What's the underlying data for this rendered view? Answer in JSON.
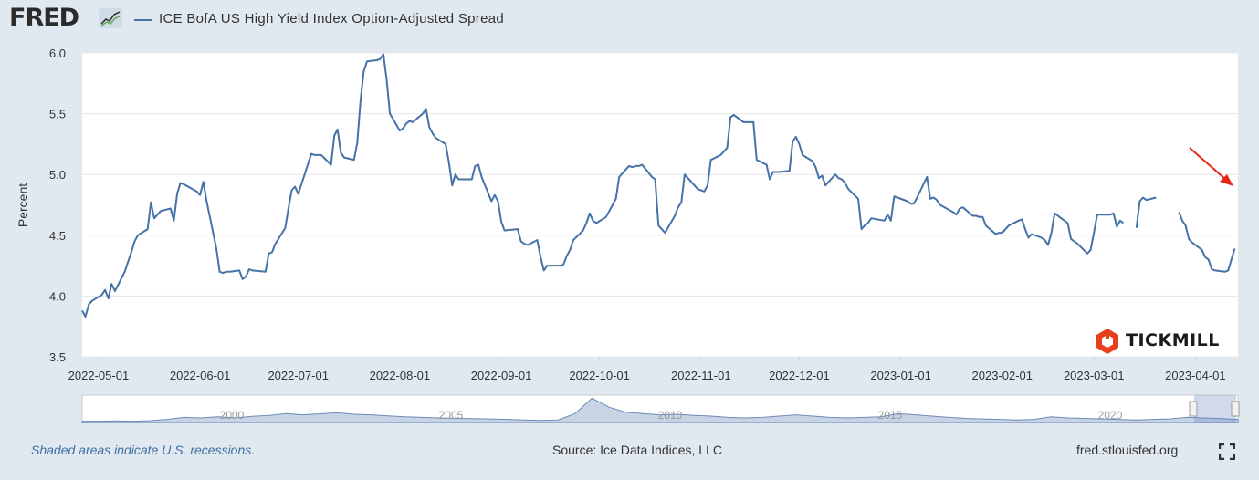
{
  "header": {
    "logo_text": "FRED",
    "logo_icon": "fred-chart-icon",
    "series_legend": "ICE BofA US High Yield Index Option-Adjusted Spread"
  },
  "footer": {
    "recession_note": "Shaded areas indicate U.S. recessions.",
    "source": "Source: Ice Data Indices, LLC",
    "site": "fred.stlouisfed.org",
    "fullscreen_icon": "fullscreen-icon"
  },
  "watermark": {
    "text": "TICKMILL",
    "color": "#e8401c"
  },
  "colors": {
    "line": "#4572a7",
    "navigator_fill": "#9ab0cc",
    "arrow": "#e52914",
    "background": "#e1e9f0",
    "plot_bg": "#ffffff"
  },
  "chart_data": {
    "type": "line",
    "title": "",
    "ylabel": "Percent",
    "xlabel": "",
    "ylim": [
      3.5,
      6.0
    ],
    "yticks": [
      3.5,
      4.0,
      4.5,
      5.0,
      5.5,
      6.0
    ],
    "ytick_labels": [
      "3.5",
      "4.0",
      "4.5",
      "5.0",
      "5.5",
      "6.0"
    ],
    "xlim": [
      "2022-04-26",
      "2023-04-14"
    ],
    "xticks": [
      "2022-05-01",
      "2022-06-01",
      "2022-07-01",
      "2022-08-01",
      "2022-09-01",
      "2022-10-01",
      "2022-11-01",
      "2022-12-01",
      "2023-01-01",
      "2023-02-01",
      "2023-03-01",
      "2023-04-01"
    ],
    "grid": true,
    "legend_position": "top-left",
    "series": [
      {
        "name": "ICE BofA US High Yield Index Option-Adjusted Spread",
        "points": [
          [
            "2022-04-26",
            3.88
          ],
          [
            "2022-04-27",
            3.83
          ],
          [
            "2022-04-28",
            3.93
          ],
          [
            "2022-04-29",
            3.96
          ],
          [
            "2022-05-02",
            4.01
          ],
          [
            "2022-05-03",
            4.05
          ],
          [
            "2022-05-04",
            3.98
          ],
          [
            "2022-05-05",
            4.1
          ],
          [
            "2022-05-06",
            4.04
          ],
          [
            "2022-05-09",
            4.2
          ],
          [
            "2022-05-10",
            4.28
          ],
          [
            "2022-05-11",
            4.36
          ],
          [
            "2022-05-12",
            4.45
          ],
          [
            "2022-05-13",
            4.5
          ],
          [
            "2022-05-16",
            4.55
          ],
          [
            "2022-05-17",
            4.77
          ],
          [
            "2022-05-18",
            4.64
          ],
          [
            "2022-05-19",
            4.67
          ],
          [
            "2022-05-20",
            4.7
          ],
          [
            "2022-05-23",
            4.72
          ],
          [
            "2022-05-24",
            4.62
          ],
          [
            "2022-05-25",
            4.84
          ],
          [
            "2022-05-26",
            4.93
          ],
          [
            "2022-05-27",
            4.92
          ],
          [
            "2022-05-31",
            4.86
          ],
          [
            "2022-06-01",
            4.83
          ],
          [
            "2022-06-02",
            4.94
          ],
          [
            "2022-06-03",
            4.78
          ],
          [
            "2022-06-06",
            4.39
          ],
          [
            "2022-06-07",
            4.2
          ],
          [
            "2022-06-08",
            4.19
          ],
          [
            "2022-06-09",
            4.2
          ],
          [
            "2022-06-10",
            4.2
          ],
          [
            "2022-06-13",
            4.21
          ],
          [
            "2022-06-14",
            4.14
          ],
          [
            "2022-06-15",
            4.16
          ],
          [
            "2022-06-16",
            4.22
          ],
          [
            "2022-06-17",
            4.21
          ],
          [
            "2022-06-21",
            4.2
          ],
          [
            "2022-06-22",
            4.35
          ],
          [
            "2022-06-23",
            4.36
          ],
          [
            "2022-06-24",
            4.43
          ],
          [
            "2022-06-27",
            4.56
          ],
          [
            "2022-06-28",
            4.72
          ],
          [
            "2022-06-29",
            4.87
          ],
          [
            "2022-06-30",
            4.9
          ],
          [
            "2022-07-01",
            4.84
          ],
          [
            "2022-07-05",
            5.17
          ],
          [
            "2022-07-06",
            5.16
          ],
          [
            "2022-07-07",
            5.16
          ],
          [
            "2022-07-08",
            5.16
          ],
          [
            "2022-07-11",
            5.08
          ],
          [
            "2022-07-12",
            5.32
          ],
          [
            "2022-07-13",
            5.37
          ],
          [
            "2022-07-14",
            5.18
          ],
          [
            "2022-07-15",
            5.14
          ],
          [
            "2022-07-18",
            5.12
          ],
          [
            "2022-07-19",
            5.26
          ],
          [
            "2022-07-20",
            5.6
          ],
          [
            "2022-07-21",
            5.85
          ],
          [
            "2022-07-22",
            5.93
          ],
          [
            "2022-07-25",
            5.94
          ],
          [
            "2022-07-26",
            5.95
          ],
          [
            "2022-07-27",
            5.99
          ],
          [
            "2022-07-28",
            5.78
          ],
          [
            "2022-07-29",
            5.5
          ],
          [
            "2022-08-01",
            5.36
          ],
          [
            "2022-08-02",
            5.38
          ],
          [
            "2022-08-03",
            5.42
          ],
          [
            "2022-08-04",
            5.44
          ],
          [
            "2022-08-05",
            5.43
          ],
          [
            "2022-08-08",
            5.5
          ],
          [
            "2022-08-09",
            5.54
          ],
          [
            "2022-08-10",
            5.39
          ],
          [
            "2022-08-11",
            5.34
          ],
          [
            "2022-08-12",
            5.3
          ],
          [
            "2022-08-15",
            5.25
          ],
          [
            "2022-08-16",
            5.1
          ],
          [
            "2022-08-17",
            4.91
          ],
          [
            "2022-08-18",
            5.0
          ],
          [
            "2022-08-19",
            4.96
          ],
          [
            "2022-08-22",
            4.96
          ],
          [
            "2022-08-23",
            4.96
          ],
          [
            "2022-08-24",
            5.07
          ],
          [
            "2022-08-25",
            5.08
          ],
          [
            "2022-08-26",
            4.98
          ],
          [
            "2022-08-29",
            4.78
          ],
          [
            "2022-08-30",
            4.83
          ],
          [
            "2022-08-31",
            4.78
          ],
          [
            "2022-09-01",
            4.61
          ],
          [
            "2022-09-02",
            4.54
          ],
          [
            "2022-09-06",
            4.55
          ],
          [
            "2022-09-07",
            4.45
          ],
          [
            "2022-09-08",
            4.43
          ],
          [
            "2022-09-09",
            4.42
          ],
          [
            "2022-09-12",
            4.46
          ],
          [
            "2022-09-13",
            4.32
          ],
          [
            "2022-09-14",
            4.21
          ],
          [
            "2022-09-15",
            4.25
          ],
          [
            "2022-09-16",
            4.25
          ],
          [
            "2022-09-19",
            4.25
          ],
          [
            "2022-09-20",
            4.26
          ],
          [
            "2022-09-21",
            4.33
          ],
          [
            "2022-09-22",
            4.38
          ],
          [
            "2022-09-23",
            4.46
          ],
          [
            "2022-09-26",
            4.54
          ],
          [
            "2022-09-27",
            4.6
          ],
          [
            "2022-09-28",
            4.68
          ],
          [
            "2022-09-29",
            4.62
          ],
          [
            "2022-09-30",
            4.6
          ],
          [
            "2022-10-03",
            4.65
          ],
          [
            "2022-10-04",
            4.7
          ],
          [
            "2022-10-05",
            4.75
          ],
          [
            "2022-10-06",
            4.8
          ],
          [
            "2022-10-07",
            4.98
          ],
          [
            "2022-10-10",
            5.07
          ],
          [
            "2022-10-11",
            5.06
          ],
          [
            "2022-10-12",
            5.07
          ],
          [
            "2022-10-13",
            5.07
          ],
          [
            "2022-10-14",
            5.08
          ],
          [
            "2022-10-17",
            4.98
          ],
          [
            "2022-10-18",
            4.96
          ],
          [
            "2022-10-19",
            4.58
          ],
          [
            "2022-10-20",
            4.55
          ],
          [
            "2022-10-21",
            4.52
          ],
          [
            "2022-10-24",
            4.66
          ],
          [
            "2022-10-25",
            4.73
          ],
          [
            "2022-10-26",
            4.77
          ],
          [
            "2022-10-27",
            5.0
          ],
          [
            "2022-10-28",
            4.97
          ],
          [
            "2022-10-31",
            4.88
          ],
          [
            "2022-11-01",
            4.87
          ],
          [
            "2022-11-02",
            4.86
          ],
          [
            "2022-11-03",
            4.91
          ],
          [
            "2022-11-04",
            5.12
          ],
          [
            "2022-11-07",
            5.16
          ],
          [
            "2022-11-08",
            5.19
          ],
          [
            "2022-11-09",
            5.22
          ],
          [
            "2022-11-10",
            5.47
          ],
          [
            "2022-11-11",
            5.49
          ],
          [
            "2022-11-14",
            5.43
          ],
          [
            "2022-11-15",
            5.43
          ],
          [
            "2022-11-16",
            5.43
          ],
          [
            "2022-11-17",
            5.43
          ],
          [
            "2022-11-18",
            5.12
          ],
          [
            "2022-11-21",
            5.08
          ],
          [
            "2022-11-22",
            4.96
          ],
          [
            "2022-11-23",
            5.02
          ],
          [
            "2022-11-25",
            5.02
          ],
          [
            "2022-11-28",
            5.03
          ],
          [
            "2022-11-29",
            5.27
          ],
          [
            "2022-11-30",
            5.31
          ],
          [
            "2022-12-01",
            5.25
          ],
          [
            "2022-12-02",
            5.16
          ],
          [
            "2022-12-05",
            5.11
          ],
          [
            "2022-12-06",
            5.06
          ],
          [
            "2022-12-07",
            4.97
          ],
          [
            "2022-12-08",
            4.99
          ],
          [
            "2022-12-09",
            4.91
          ],
          [
            "2022-12-12",
            5.0
          ],
          [
            "2022-12-13",
            4.97
          ],
          [
            "2022-12-14",
            4.96
          ],
          [
            "2022-12-15",
            4.93
          ],
          [
            "2022-12-16",
            4.88
          ],
          [
            "2022-12-19",
            4.8
          ],
          [
            "2022-12-20",
            4.55
          ],
          [
            "2022-12-21",
            4.58
          ],
          [
            "2022-12-22",
            4.6
          ],
          [
            "2022-12-23",
            4.64
          ],
          [
            "2022-12-27",
            4.62
          ],
          [
            "2022-12-28",
            4.67
          ],
          [
            "2022-12-29",
            4.62
          ],
          [
            "2022-12-30",
            4.82
          ],
          [
            "2023-01-03",
            4.78
          ],
          [
            "2023-01-04",
            4.76
          ],
          [
            "2023-01-05",
            4.76
          ],
          [
            "2023-01-06",
            4.81
          ],
          [
            "2023-01-09",
            4.98
          ],
          [
            "2023-01-10",
            4.8
          ],
          [
            "2023-01-11",
            4.81
          ],
          [
            "2023-01-12",
            4.79
          ],
          [
            "2023-01-13",
            4.75
          ],
          [
            "2023-01-17",
            4.69
          ],
          [
            "2023-01-18",
            4.67
          ],
          [
            "2023-01-19",
            4.72
          ],
          [
            "2023-01-20",
            4.73
          ],
          [
            "2023-01-23",
            4.66
          ],
          [
            "2023-01-24",
            4.66
          ],
          [
            "2023-01-25",
            4.65
          ],
          [
            "2023-01-26",
            4.65
          ],
          [
            "2023-01-27",
            4.58
          ],
          [
            "2023-01-30",
            4.51
          ],
          [
            "2023-01-31",
            4.52
          ],
          [
            "2023-02-01",
            4.52
          ],
          [
            "2023-02-02",
            4.55
          ],
          [
            "2023-02-03",
            4.58
          ],
          [
            "2023-02-06",
            4.62
          ],
          [
            "2023-02-07",
            4.63
          ],
          [
            "2023-02-08",
            4.55
          ],
          [
            "2023-02-09",
            4.48
          ],
          [
            "2023-02-10",
            4.51
          ],
          [
            "2023-02-13",
            4.48
          ],
          [
            "2023-02-14",
            4.46
          ],
          [
            "2023-02-15",
            4.42
          ],
          [
            "2023-02-16",
            4.52
          ],
          [
            "2023-02-17",
            4.68
          ],
          [
            "2023-02-21",
            4.6
          ],
          [
            "2023-02-22",
            4.47
          ],
          [
            "2023-02-23",
            4.45
          ],
          [
            "2023-02-24",
            4.43
          ],
          [
            "2023-02-27",
            4.35
          ],
          [
            "2023-02-28",
            4.38
          ],
          [
            "2023-03-01",
            4.52
          ],
          [
            "2023-03-02",
            4.67
          ],
          [
            "2023-03-03",
            4.67
          ],
          [
            "2023-03-06",
            4.67
          ],
          [
            "2023-03-07",
            4.68
          ],
          [
            "2023-03-08",
            4.57
          ],
          [
            "2023-03-09",
            4.62
          ],
          [
            "2023-03-10",
            4.6
          ],
          [
            "2023-03-13",
            null
          ],
          [
            "2023-03-14",
            4.56
          ],
          [
            "2023-03-15",
            4.78
          ],
          [
            "2023-03-16",
            4.81
          ],
          [
            "2023-03-17",
            4.79
          ],
          [
            "2023-03-20",
            4.81
          ],
          [
            "2023-03-21",
            null
          ],
          [
            "2023-03-22",
            null
          ],
          [
            "2023-03-23",
            null
          ],
          [
            "2023-03-24",
            null
          ],
          [
            "2023-03-27",
            4.69
          ],
          [
            "2023-03-28",
            4.62
          ],
          [
            "2023-03-29",
            4.58
          ],
          [
            "2023-03-30",
            4.47
          ],
          [
            "2023-03-31",
            4.44
          ],
          [
            "2023-04-03",
            4.38
          ],
          [
            "2023-04-04",
            4.32
          ],
          [
            "2023-04-05",
            4.3
          ],
          [
            "2023-04-06",
            4.22
          ],
          [
            "2023-04-07",
            4.21
          ],
          [
            "2023-04-10",
            4.2
          ],
          [
            "2023-04-11",
            4.21
          ],
          [
            "2023-04-12",
            4.3
          ],
          [
            "2023-04-13",
            4.39
          ]
        ]
      }
    ]
  },
  "navigator": {
    "labels": [
      "2000",
      "2005",
      "2010",
      "2015",
      "2020"
    ]
  }
}
